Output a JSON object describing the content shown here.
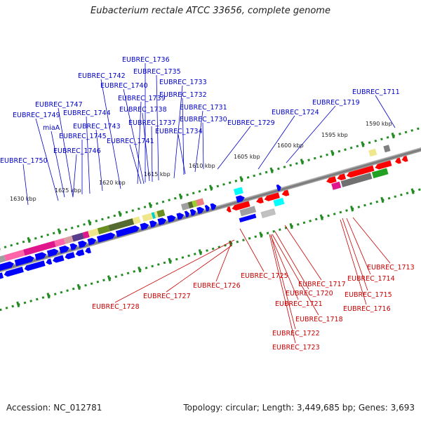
{
  "title": "Eubacterium rectale ATCC 33656, complete genome",
  "footer": {
    "accession_label": "Accession: NC_012781",
    "topology_label": "Topology: circular; Length: 3,449,685 bp; Genes: 3,693"
  },
  "colors": {
    "forward_label": "#0000c8",
    "reverse_label": "#c80000",
    "forward_feature": "#0000ff",
    "reverse_feature": "#ff0000",
    "backbone": "#808080",
    "tick": "#228b22"
  },
  "scale_ticks": [
    "1630 kbp",
    "1625 kbp",
    "1620 kbp",
    "1615 kbp",
    "1610 kbp",
    "1605 kbp",
    "1600 kbp",
    "1595 kbp",
    "1590 kbp"
  ],
  "forward_labels": [
    "EUBREC_1736",
    "EUBREC_1742",
    "EUBREC_1735",
    "EUBREC_1740",
    "EUBREC_1733",
    "EUBREC_1739",
    "EUBREC_1732",
    "EUBREC_1747",
    "EUBREC_1738",
    "EUBREC_1731",
    "EUBREC_1749",
    "EUBREC_1744",
    "EUBREC_1737",
    "EUBREC_1730",
    "miaA",
    "EUBREC_1743",
    "EUBREC_1734",
    "EUBREC_1745",
    "EUBREC_1741",
    "EUBREC_1746",
    "EUBREC_1750",
    "EUBREC_1729",
    "EUBREC_1724",
    "EUBREC_1719",
    "EUBREC_1711"
  ],
  "reverse_labels": [
    "EUBREC_1713",
    "EUBREC_1725",
    "EUBREC_1714",
    "EUBREC_1726",
    "EUBREC_1717",
    "EUBREC_1715",
    "EUBREC_1727",
    "EUBREC_1720",
    "EUBREC_1728",
    "EUBREC_1721",
    "EUBREC_1716",
    "EUBREC_1718",
    "EUBREC_1722",
    "EUBREC_1723"
  ]
}
